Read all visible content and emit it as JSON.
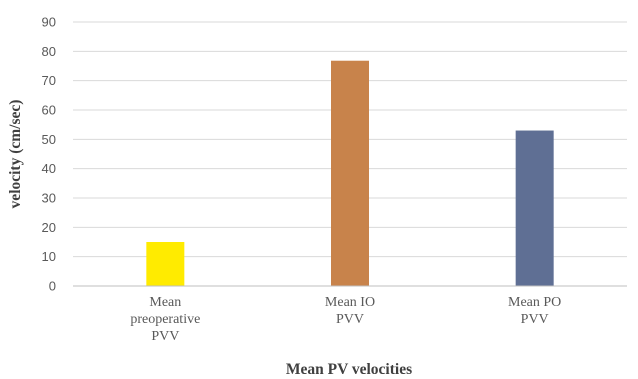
{
  "chart_data": {
    "type": "bar",
    "categories": [
      [
        "Mean",
        "preoperative",
        "PVV"
      ],
      [
        "Mean IO",
        "PVV"
      ],
      [
        "Mean PO",
        "PVV"
      ]
    ],
    "values": [
      15,
      76.8,
      53
    ],
    "colors": [
      "#ffeb00",
      "#c8834b",
      "#5f6f94"
    ],
    "xlabel": "Mean PV velocities",
    "ylabel": "velocity (cm/sec)",
    "ylim": [
      0,
      90
    ],
    "yticks": [
      0,
      10,
      20,
      30,
      40,
      50,
      60,
      70,
      80,
      90
    ],
    "grid": true,
    "legend": "none"
  }
}
